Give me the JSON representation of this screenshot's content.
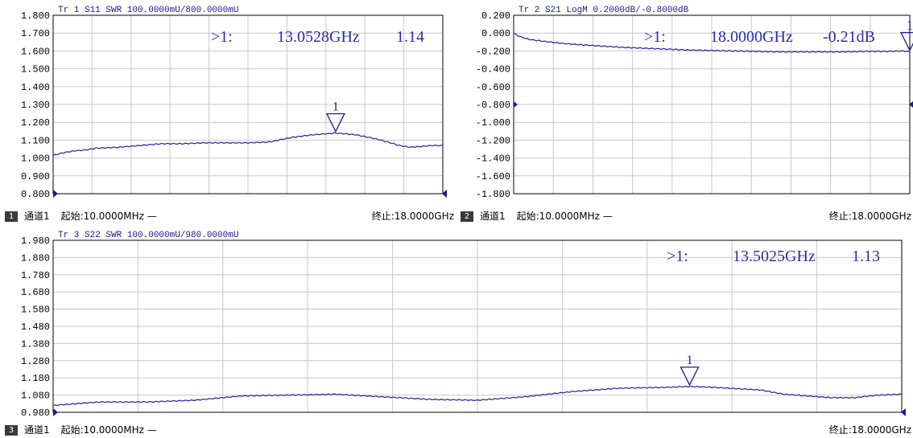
{
  "colors": {
    "trace": "#2c2fa3",
    "grid": "#c8c8c8",
    "frame": "#000000",
    "header": "#1a1a8c",
    "marker": "#1a1a8c"
  },
  "panels": [
    {
      "id": "p1",
      "header": "Tr 1  S11 SWR 100.0000mU/800.0000mU",
      "marker_readout": {
        "prefix": ">1:",
        "freq": "13.0528GHz",
        "value": "1.14"
      },
      "marker_label": "1",
      "footer": {
        "channel_num": "1",
        "channel": "通道1",
        "start": "起始:10.0000MHz —",
        "stop": "终止:18.0000GHz"
      },
      "chart_data": {
        "type": "line",
        "title": "Tr 1  S11 SWR 100.0000mU/800.0000mU",
        "x_range_ghz": [
          0.01,
          18.0
        ],
        "ylim": [
          0.8,
          1.8
        ],
        "yticks": [
          "1.800",
          "1.700",
          "1.600",
          "1.500",
          "1.400",
          "1.300",
          "1.200",
          "1.100",
          "1.000",
          "0.900",
          "0.800"
        ],
        "grid": true,
        "series": [
          {
            "x": [
              0.01,
              0.5,
              1,
              1.5,
              2,
              3,
              4,
              5,
              6,
              7,
              8,
              9,
              10,
              11,
              12,
              13.05,
              14,
              15,
              16,
              16.5,
              17,
              17.5,
              18
            ],
            "y": [
              1.015,
              1.03,
              1.04,
              1.045,
              1.055,
              1.06,
              1.07,
              1.08,
              1.08,
              1.085,
              1.085,
              1.085,
              1.09,
              1.115,
              1.13,
              1.14,
              1.13,
              1.105,
              1.07,
              1.06,
              1.065,
              1.07,
              1.07
            ]
          }
        ],
        "marker": {
          "x": 13.0528,
          "y": 1.14
        }
      }
    },
    {
      "id": "p2",
      "header": "Tr 2  S21 LogM 0.2000dB/-0.8000dB",
      "marker_readout": {
        "prefix": ">1:",
        "freq": "18.0000GHz",
        "value": "-0.21dB"
      },
      "marker_label": "1",
      "footer": {
        "channel_num": "2",
        "channel": "通道1",
        "start": "起始:10.0000MHz —",
        "stop": "终止:18.0000GHz"
      },
      "chart_data": {
        "type": "line",
        "title": "Tr 2  S21 LogM 0.2000dB/-0.8000dB",
        "x_range_ghz": [
          0.01,
          18.0
        ],
        "ylim": [
          -1.8,
          0.2
        ],
        "yticks": [
          "0.200",
          "0.000",
          "-0.200",
          "-0.400",
          "-0.600",
          "-0.800",
          "-1.000",
          "-1.200",
          "-1.400",
          "-1.600",
          "-1.800"
        ],
        "grid": true,
        "series": [
          {
            "x": [
              0.01,
              0.3,
              0.7,
              1,
              2,
              3,
              4,
              5,
              6,
              7,
              8,
              9,
              10,
              11,
              12,
              13,
              14,
              15,
              16,
              17,
              17.7,
              18
            ],
            "y": [
              0.0,
              -0.04,
              -0.07,
              -0.08,
              -0.11,
              -0.13,
              -0.145,
              -0.16,
              -0.17,
              -0.18,
              -0.19,
              -0.195,
              -0.2,
              -0.205,
              -0.21,
              -0.21,
              -0.21,
              -0.21,
              -0.205,
              -0.205,
              -0.2,
              -0.21
            ]
          }
        ],
        "marker": {
          "x": 18.0,
          "y": -0.21
        }
      }
    },
    {
      "id": "p3",
      "header": "Tr 3  S22 SWR 100.0000mU/980.0000mU",
      "marker_readout": {
        "prefix": ">1:",
        "freq": "13.5025GHz",
        "value": "1.13"
      },
      "marker_label": "1",
      "footer": {
        "channel_num": "3",
        "channel": "通道1",
        "start": "起始:10.0000MHz —",
        "stop": "终止:18.0000GHz"
      },
      "chart_data": {
        "type": "line",
        "title": "Tr 3  S22 SWR 100.0000mU/980.0000mU",
        "x_range_ghz": [
          0.01,
          18.0
        ],
        "ylim": [
          0.98,
          1.98
        ],
        "yticks": [
          "1.980",
          "1.880",
          "1.780",
          "1.680",
          "1.580",
          "1.480",
          "1.380",
          "1.280",
          "1.180",
          "1.080",
          "0.980"
        ],
        "grid": true,
        "series": [
          {
            "x": [
              0.01,
              0.5,
              1,
              2,
              3,
              4,
              5,
              6,
              7,
              8,
              9,
              10,
              11,
              12,
              13,
              13.5,
              14,
              15,
              15.5,
              16,
              16.5,
              17,
              17.5,
              18
            ],
            "y": [
              1.02,
              1.03,
              1.04,
              1.04,
              1.05,
              1.075,
              1.08,
              1.085,
              1.07,
              1.055,
              1.05,
              1.07,
              1.1,
              1.12,
              1.125,
              1.13,
              1.125,
              1.11,
              1.085,
              1.075,
              1.065,
              1.065,
              1.08,
              1.085
            ]
          }
        ],
        "marker": {
          "x": 13.5025,
          "y": 1.13
        }
      }
    }
  ]
}
